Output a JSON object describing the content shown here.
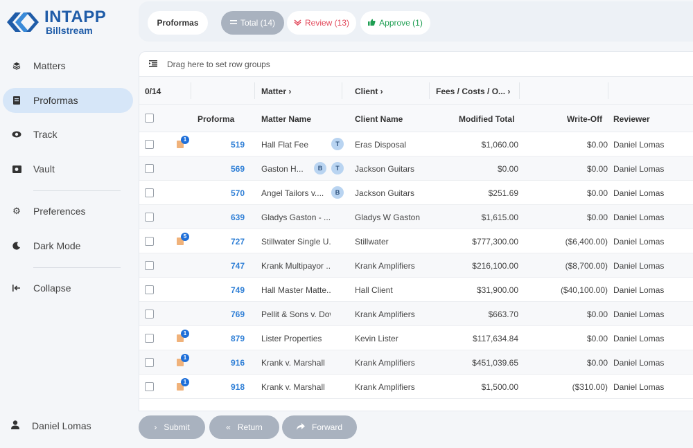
{
  "app": {
    "logo_title": "INTAPP",
    "logo_sub": "Billstream"
  },
  "sidebar": {
    "items": [
      {
        "label": "Matters",
        "icon": "layers-icon"
      },
      {
        "label": "Proformas",
        "icon": "document-icon"
      },
      {
        "label": "Track",
        "icon": "eye-icon"
      },
      {
        "label": "Vault",
        "icon": "vault-icon"
      },
      {
        "label": "Preferences",
        "icon": "gear-icon"
      },
      {
        "label": "Dark Mode",
        "icon": "moon-icon"
      },
      {
        "label": "Collapse",
        "icon": "collapse-icon"
      }
    ],
    "user": "Daniel Lomas"
  },
  "topbar": {
    "proformas": "Proformas",
    "total": "Total (14)",
    "review": "Review (13)",
    "approve": "Approve (1)"
  },
  "grid": {
    "group_hint": "Drag here to set row groups",
    "count": "0/14",
    "group_headers": [
      "Matter",
      "Client",
      "Fees / Costs / O..."
    ],
    "columns": [
      "Proforma",
      "Matter Name",
      "Client Name",
      "Modified Total",
      "Write-Off",
      "Reviewer"
    ],
    "rows": [
      {
        "badge": "1",
        "proforma": "519",
        "matter": "Hall Flat Fee",
        "avatars": [
          "T"
        ],
        "client": "Eras Disposal",
        "total": "$1,060.00",
        "writeoff": "$0.00",
        "reviewer": "Daniel Lomas"
      },
      {
        "badge": "",
        "proforma": "569",
        "matter": "Gaston H...",
        "avatars": [
          "B",
          "T"
        ],
        "client": "Jackson Guitars",
        "total": "$0.00",
        "writeoff": "$0.00",
        "reviewer": "Daniel Lomas"
      },
      {
        "badge": "",
        "proforma": "570",
        "matter": "Angel Tailors v....",
        "avatars": [
          "B"
        ],
        "client": "Jackson Guitars",
        "total": "$251.69",
        "writeoff": "$0.00",
        "reviewer": "Daniel Lomas"
      },
      {
        "badge": "",
        "proforma": "639",
        "matter": "Gladys Gaston - ...",
        "avatars": [],
        "client": "Gladys W Gaston",
        "total": "$1,615.00",
        "writeoff": "$0.00",
        "reviewer": "Daniel Lomas"
      },
      {
        "badge": "5",
        "proforma": "727",
        "matter": "Stillwater Single U...",
        "avatars": [],
        "client": "Stillwater",
        "total": "$777,300.00",
        "writeoff": "($6,400.00)",
        "reviewer": "Daniel Lomas"
      },
      {
        "badge": "",
        "proforma": "747",
        "matter": "Krank Multipayor ...",
        "avatars": [],
        "client": "Krank Amplifiers",
        "total": "$216,100.00",
        "writeoff": "($8,700.00)",
        "reviewer": "Daniel Lomas"
      },
      {
        "badge": "",
        "proforma": "749",
        "matter": "Hall Master Matte...",
        "avatars": [],
        "client": "Hall Client",
        "total": "$31,900.00",
        "writeoff": "($40,100.00)",
        "reviewer": "Daniel Lomas"
      },
      {
        "badge": "",
        "proforma": "769",
        "matter": "Pellit & Sons v. Dow",
        "avatars": [],
        "client": "Krank Amplifiers",
        "total": "$663.70",
        "writeoff": "$0.00",
        "reviewer": "Daniel Lomas"
      },
      {
        "badge": "1",
        "proforma": "879",
        "matter": "Lister Properties",
        "avatars": [],
        "client": "Kevin Lister",
        "total": "$117,634.84",
        "writeoff": "$0.00",
        "reviewer": "Daniel Lomas"
      },
      {
        "badge": "1",
        "proforma": "916",
        "matter": "Krank v. Marshall",
        "avatars": [],
        "client": "Krank Amplifiers",
        "total": "$451,039.65",
        "writeoff": "$0.00",
        "reviewer": "Daniel Lomas"
      },
      {
        "badge": "1",
        "proforma": "918",
        "matter": "Krank v. Marshall",
        "avatars": [],
        "client": "Krank Amplifiers",
        "total": "$1,500.00",
        "writeoff": "($310.00)",
        "reviewer": "Daniel Lomas"
      }
    ]
  },
  "actions": {
    "submit": "Submit",
    "return": "Return",
    "forward": "Forward"
  }
}
